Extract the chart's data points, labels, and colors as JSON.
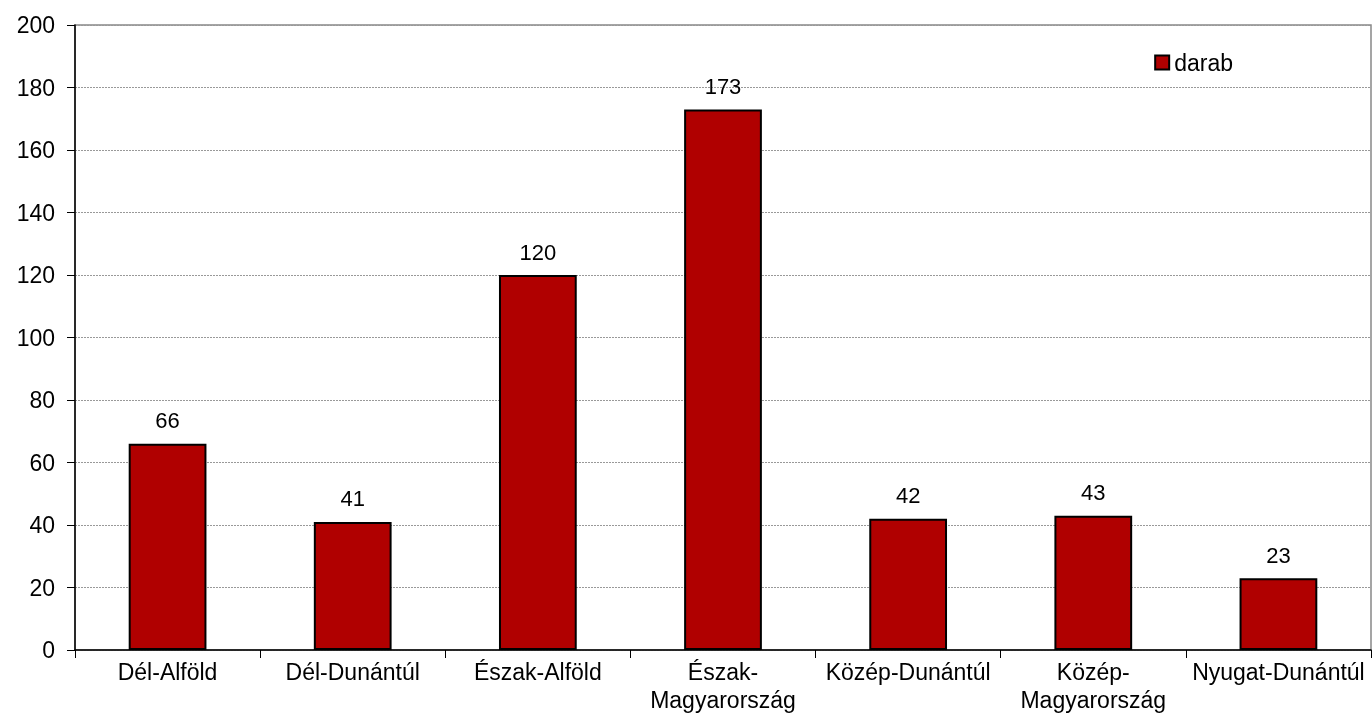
{
  "chart_data": {
    "type": "bar",
    "categories": [
      "Dél-Alföld",
      "Dél-Dunántúl",
      "Észak-Alföld",
      "Észak-Magyarország",
      "Közép-Dunántúl",
      "Közép-Magyarország",
      "Nyugat-Dunántúl"
    ],
    "series": [
      {
        "name": "darab",
        "color": "#b00000",
        "values": [
          66,
          41,
          120,
          173,
          42,
          43,
          23
        ]
      }
    ],
    "ylim": [
      0,
      200
    ],
    "yticks": [
      0,
      20,
      40,
      60,
      80,
      100,
      120,
      140,
      160,
      180,
      200
    ],
    "grid": "y",
    "legend": "top right",
    "data_labels": true
  }
}
